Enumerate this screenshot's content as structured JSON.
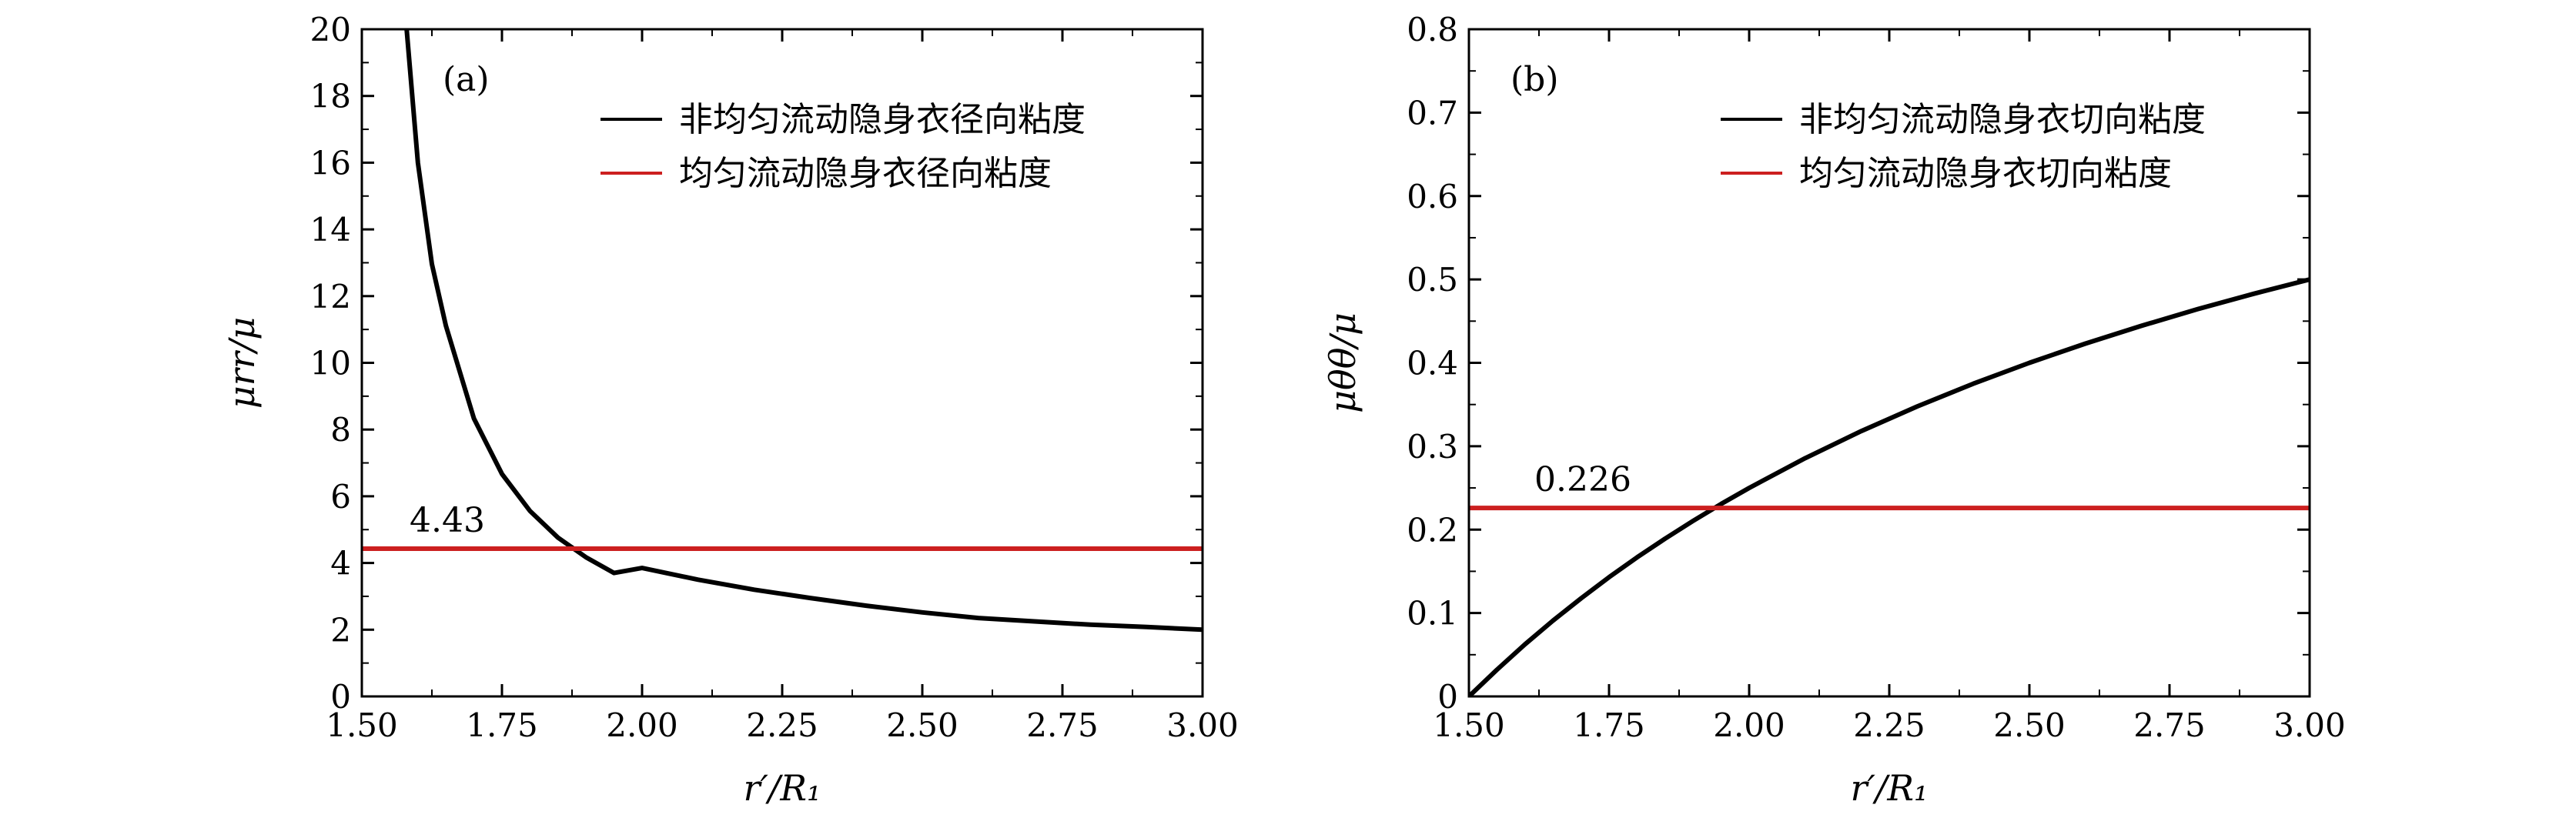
{
  "chart_data": [
    {
      "type": "line",
      "panel_label": "(a)",
      "xlabel": "r′/R₁",
      "ylabel": "μrr/μ",
      "xlim": [
        1.5,
        3.0
      ],
      "ylim": [
        0,
        20
      ],
      "xticks": [
        "1.50",
        "1.75",
        "2.00",
        "2.25",
        "2.50",
        "2.75",
        "3.00"
      ],
      "yticks": [
        "0",
        "2",
        "4",
        "6",
        "8",
        "10",
        "12",
        "14",
        "16",
        "18",
        "20"
      ],
      "grid": false,
      "legend_position": "top-right",
      "series": [
        {
          "name": "非均匀流动隐身衣径向粘度",
          "color": "#000000",
          "x": [
            1.58,
            1.6,
            1.625,
            1.65,
            1.7,
            1.75,
            1.8,
            1.85,
            1.9,
            1.95,
            2.0,
            2.1,
            2.2,
            2.3,
            2.4,
            2.5,
            2.6,
            2.7,
            2.8,
            2.9,
            3.0
          ],
          "y": [
            20.0,
            16.0,
            12.96,
            11.11,
            8.33,
            6.67,
            5.56,
            4.76,
            4.17,
            3.7,
            3.85,
            3.5,
            3.2,
            2.95,
            2.72,
            2.52,
            2.35,
            2.25,
            2.15,
            2.08,
            2.0
          ]
        },
        {
          "name": "均匀流动隐身衣径向粘度",
          "color": "#cc1f1f",
          "x": [
            1.5,
            3.0
          ],
          "y": [
            4.43,
            4.43
          ]
        }
      ],
      "annotations": [
        {
          "text": "4.43",
          "x": 1.65,
          "y": 4.43
        }
      ]
    },
    {
      "type": "line",
      "panel_label": "(b)",
      "xlabel": "r′/R₁",
      "ylabel": "μθθ/μ",
      "xlim": [
        1.5,
        3.0
      ],
      "ylim": [
        0,
        0.8
      ],
      "xticks": [
        "1.50",
        "1.75",
        "2.00",
        "2.25",
        "2.50",
        "2.75",
        "3.00"
      ],
      "yticks": [
        "0",
        "0.1",
        "0.2",
        "0.3",
        "0.4",
        "0.5",
        "0.6",
        "0.7",
        "0.8"
      ],
      "grid": false,
      "legend_position": "top-right",
      "series": [
        {
          "name": "非均匀流动隐身衣切向粘度",
          "color": "#000000",
          "x": [
            1.5,
            1.55,
            1.6,
            1.65,
            1.7,
            1.75,
            1.8,
            1.85,
            1.9,
            1.95,
            2.0,
            2.1,
            2.2,
            2.3,
            2.4,
            2.5,
            2.6,
            2.7,
            2.8,
            2.9,
            3.0
          ],
          "y": [
            0.0,
            0.032,
            0.0625,
            0.0909,
            0.1176,
            0.1429,
            0.1667,
            0.1892,
            0.2105,
            0.2308,
            0.25,
            0.2857,
            0.3182,
            0.3478,
            0.375,
            0.4,
            0.4231,
            0.4444,
            0.4643,
            0.4828,
            0.5
          ]
        },
        {
          "name": "均匀流动隐身衣切向粘度",
          "color": "#cc1f1f",
          "x": [
            1.5,
            3.0
          ],
          "y": [
            0.226,
            0.226
          ]
        }
      ],
      "annotations": [
        {
          "text": "0.226",
          "x": 1.63,
          "y": 0.226
        }
      ]
    }
  ]
}
